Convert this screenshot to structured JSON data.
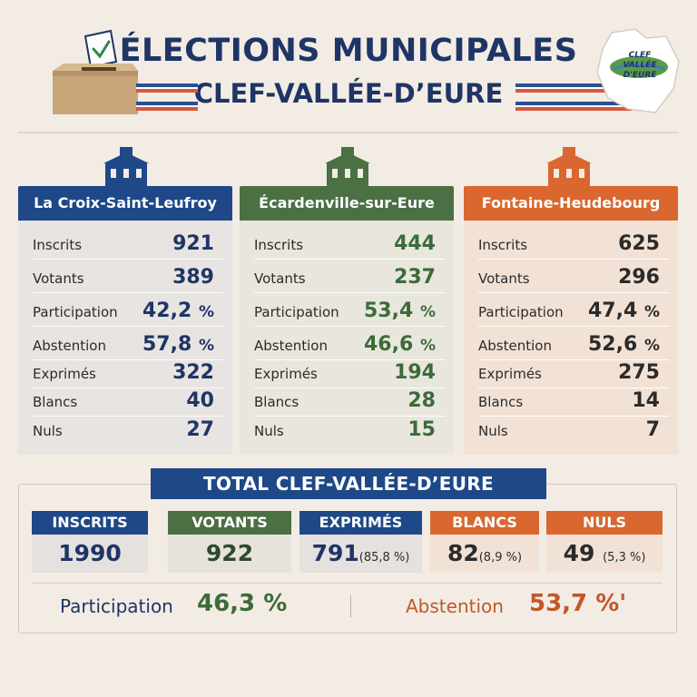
{
  "header": {
    "title": "ÉLECTIONS MUNICIPALES",
    "subtitle": "CLEF-VALLÉE-D’EURE",
    "logo_line1": "CLEF",
    "logo_line2": "VALLÉE D'EURE"
  },
  "colors": {
    "blue": "#1e4887",
    "green": "#4a7043",
    "orange": "#d9672f",
    "navy_text": "#1e3566"
  },
  "communes": [
    {
      "name": "La Croix-Saint-Leufroy",
      "inscrits_label": "Inscrits",
      "inscrits": "921",
      "votants_label": "Votants",
      "votants": "389",
      "participation_label": "Participation",
      "participation": "42,2",
      "participation_unit": "%",
      "abstention_label": "Abstention",
      "abstention": "57,8",
      "abstention_unit": "%",
      "exprimes_label": "Exprimés",
      "exprimes": "322",
      "blancs_label": "Blancs",
      "blancs": "40",
      "nuls_label": "Nuls",
      "nuls": "27"
    },
    {
      "name": "Écardenville-sur-Eure",
      "inscrits_label": "Inscrits",
      "inscrits": "444",
      "votants_label": "Votants",
      "votants": "237",
      "participation_label": "Participation",
      "participation": "53,4",
      "participation_unit": "%",
      "abstention_label": "Abstention",
      "abstention": "46,6",
      "abstention_unit": "%",
      "exprimes_label": "Exprimés",
      "exprimes": "194",
      "blancs_label": "Blancs",
      "blancs": "28",
      "nuls_label": "Nuls",
      "nuls": "15"
    },
    {
      "name": "Fontaine-Heudebourg",
      "inscrits_label": "Inscrits",
      "inscrits": "625",
      "votants_label": "Votants",
      "votants": "296",
      "participation_label": "Participation",
      "participation": "47,4",
      "participation_unit": "%",
      "abstention_label": "Abstention",
      "abstention": "52,6",
      "abstention_unit": "%",
      "exprimes_label": "Exprimés",
      "exprimes": "275",
      "blancs_label": "Blancs",
      "blancs": "14",
      "nuls_label": "Nuls",
      "nuls": "7"
    }
  ],
  "total": {
    "title": "TOTAL CLEF-VALLÉE-D’EURE",
    "inscrits_label": "INSCRITS",
    "inscrits": "1990",
    "votants_label": "VOTANTS",
    "votants": "922",
    "exprimes_label": "EXPRIMÉS",
    "exprimes": "791",
    "exprimes_pct": "(85,8 %)",
    "blancs_label": "BLANCS",
    "blancs": "82",
    "blancs_pct": "(8,9 %)",
    "nuls_label": "NULS",
    "nuls": "49",
    "nuls_pct": "(5,3 %)",
    "participation_label": "Participation",
    "participation": "46,3 %",
    "abstention_label": "Abstention",
    "abstention": "53,7 %'"
  }
}
